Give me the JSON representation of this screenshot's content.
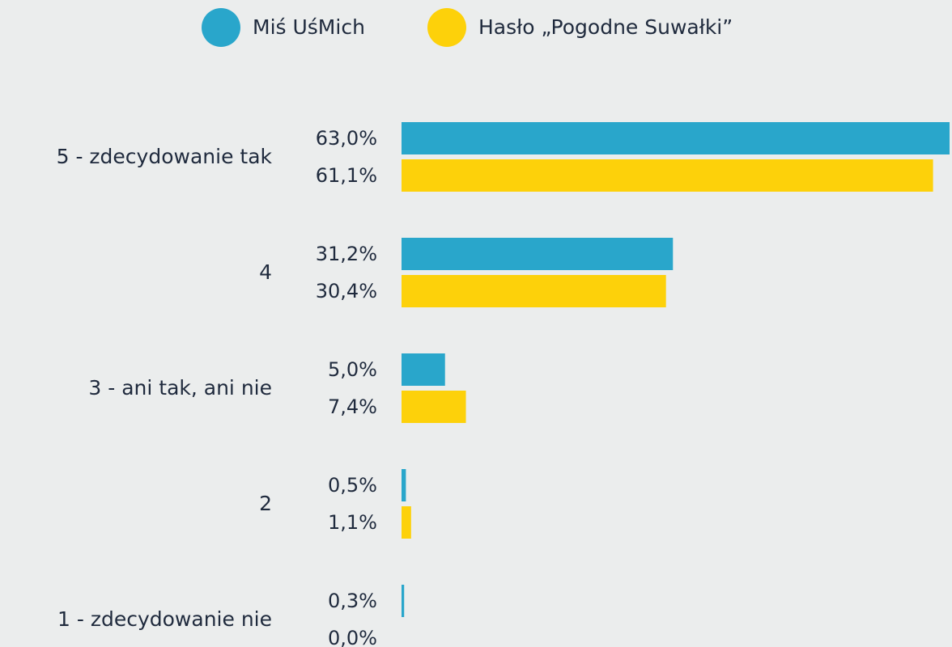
{
  "chart_data": {
    "type": "hbar",
    "categories": [
      "5 - zdecydowanie tak",
      "4",
      "3 - ani tak, ani nie",
      "2",
      "1 - zdecydowanie nie"
    ],
    "series": [
      {
        "name": "Miś UśMich",
        "color": "#29a6cb",
        "values": [
          63.0,
          31.2,
          5.0,
          0.5,
          0.3
        ],
        "value_labels": [
          "63,0%",
          "31,2%",
          "5,0%",
          "0,5%",
          "0,3%"
        ]
      },
      {
        "name": "Hasło „Pogodne Suwałki”",
        "color": "#fdd10a",
        "values": [
          61.1,
          30.4,
          7.4,
          1.1,
          0.0
        ],
        "value_labels": [
          "61,1%",
          "30,4%",
          "7,4%",
          "1,1%",
          "0,0%"
        ]
      }
    ],
    "legend": "top"
  }
}
